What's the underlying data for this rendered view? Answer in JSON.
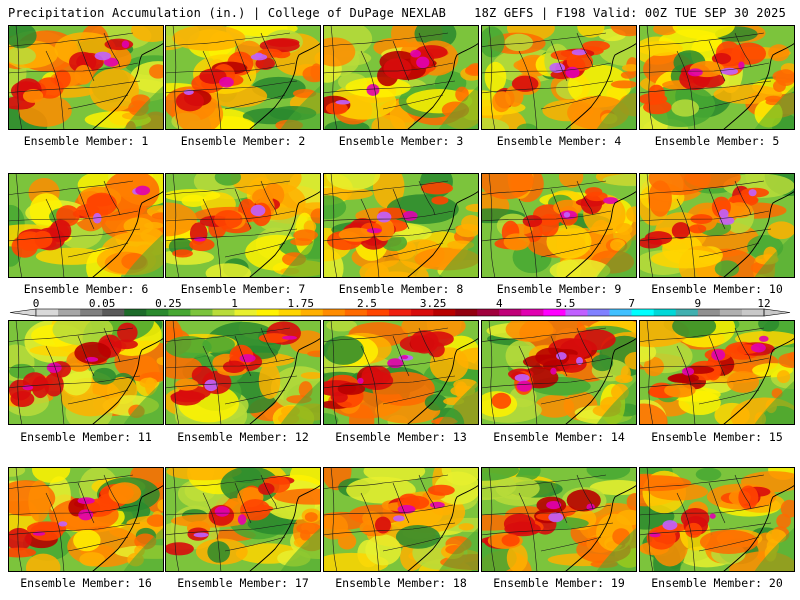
{
  "header": {
    "left": "Precipitation Accumulation (in.) | College of DuPage NEXLAB",
    "right": "18Z GEFS | F198 Valid: 00Z TUE SEP 30 2025"
  },
  "colorbar": {
    "labels": [
      "0",
      "0.05",
      "0.25",
      "1",
      "1.75",
      "2.5",
      "3.25",
      "4",
      "5.5",
      "7",
      "9",
      "12"
    ],
    "colors": [
      "#d9d9d9",
      "#a6a6a6",
      "#7f7f7f",
      "#5a5a5a",
      "#1d6b2a",
      "#2a8a2e",
      "#47a833",
      "#7cc43c",
      "#b9dc3a",
      "#e8f02e",
      "#fff200",
      "#ffd500",
      "#ffb000",
      "#ff8c00",
      "#ff6a00",
      "#ff4500",
      "#f02010",
      "#d80c0c",
      "#b80000",
      "#920010",
      "#a0003c",
      "#c00078",
      "#e000b0",
      "#ff00ff",
      "#c060ff",
      "#8080ff",
      "#40c0ff",
      "#00ffff",
      "#00d8d8",
      "#40b0b0",
      "#909090",
      "#b0b0b0",
      "#c8c8c8"
    ]
  },
  "panels": [
    {
      "label": "Ensemble Member: 1",
      "intensity": 0.55
    },
    {
      "label": "Ensemble Member: 2",
      "intensity": 0.8
    },
    {
      "label": "Ensemble Member: 3",
      "intensity": 0.85
    },
    {
      "label": "Ensemble Member: 4",
      "intensity": 0.6
    },
    {
      "label": "Ensemble Member: 5",
      "intensity": 0.6
    },
    {
      "label": "Ensemble Member: 6",
      "intensity": 0.6
    },
    {
      "label": "Ensemble Member: 7",
      "intensity": 0.45
    },
    {
      "label": "Ensemble Member: 8",
      "intensity": 0.6
    },
    {
      "label": "Ensemble Member: 9",
      "intensity": 0.55
    },
    {
      "label": "Ensemble Member: 10",
      "intensity": 0.55
    },
    {
      "label": "Ensemble Member: 11",
      "intensity": 0.65
    },
    {
      "label": "Ensemble Member: 12",
      "intensity": 0.6
    },
    {
      "label": "Ensemble Member: 13",
      "intensity": 0.8
    },
    {
      "label": "Ensemble Member: 14",
      "intensity": 0.95
    },
    {
      "label": "Ensemble Member: 15",
      "intensity": 0.7
    },
    {
      "label": "Ensemble Member: 16",
      "intensity": 0.75
    },
    {
      "label": "Ensemble Member: 17",
      "intensity": 0.5
    },
    {
      "label": "Ensemble Member: 18",
      "intensity": 0.55
    },
    {
      "label": "Ensemble Member: 19",
      "intensity": 0.65
    },
    {
      "label": "Ensemble Member: 20",
      "intensity": 0.6
    }
  ]
}
